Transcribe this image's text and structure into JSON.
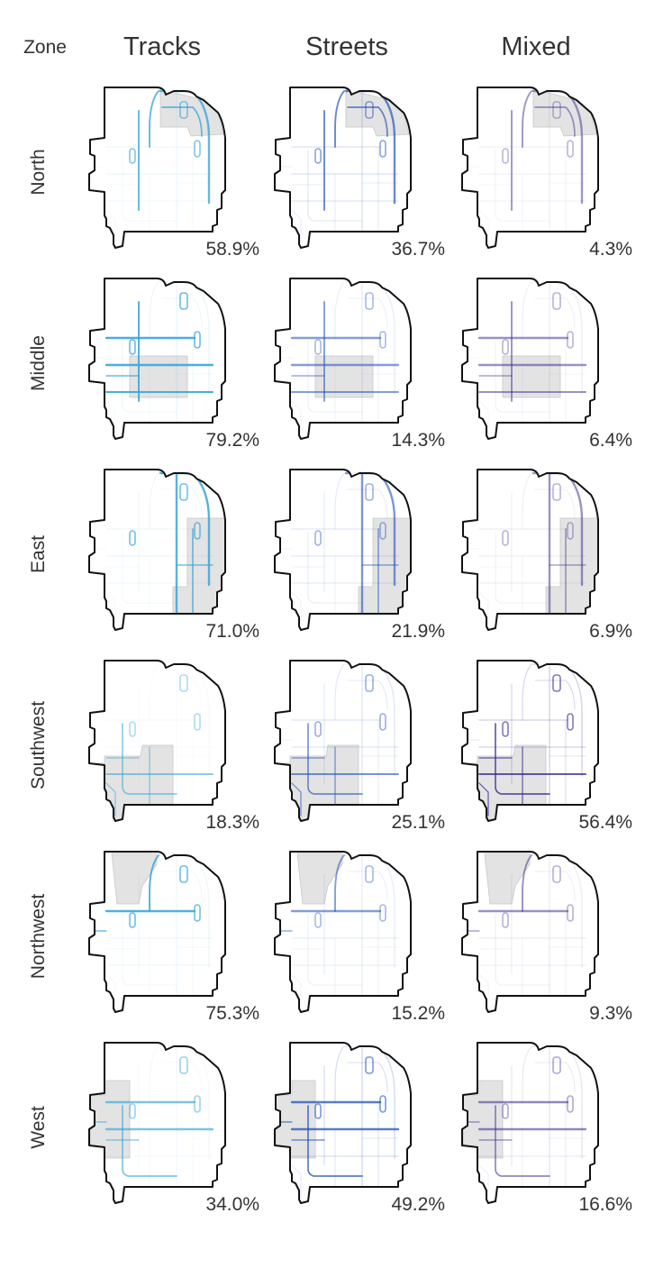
{
  "chart_data": {
    "type": "small-multiples-map",
    "corner_label": "Zone",
    "columns": [
      {
        "label": "Tracks",
        "color": "#3aa6d8"
      },
      {
        "label": "Streets",
        "color": "#1f4fb8"
      },
      {
        "label": "Mixed",
        "color": "#3b2a8e"
      }
    ],
    "rows": [
      {
        "label": "North",
        "values": [
          "58.9%",
          "36.7%",
          "4.3%"
        ]
      },
      {
        "label": "Middle",
        "values": [
          "79.2%",
          "14.3%",
          "6.4%"
        ]
      },
      {
        "label": "East",
        "values": [
          "71.0%",
          "21.9%",
          "6.9%"
        ]
      },
      {
        "label": "Southwest",
        "values": [
          "18.3%",
          "25.1%",
          "56.4%"
        ]
      },
      {
        "label": "Northwest",
        "values": [
          "75.3%",
          "15.2%",
          "9.3%"
        ]
      },
      {
        "label": "West",
        "values": [
          "34.0%",
          "49.2%",
          "16.6%"
        ]
      }
    ],
    "highlight_color": "#e3e3e3",
    "outline_color": "#111111"
  }
}
